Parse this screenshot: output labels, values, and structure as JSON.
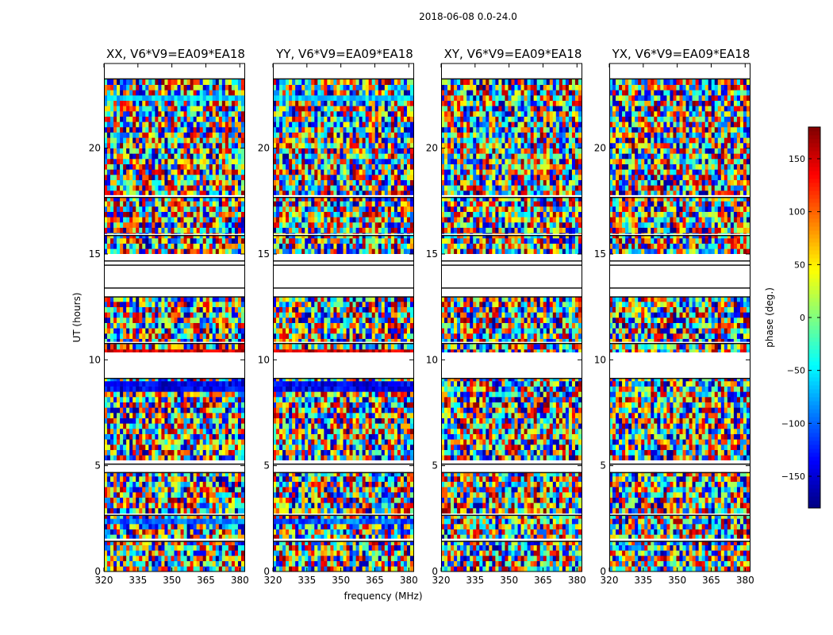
{
  "figure": {
    "suptitle": "2018-06-08 0.0-24.0"
  },
  "chart_data": {
    "type": "heatmap",
    "title": "2018-06-08 0.0-24.0",
    "xlabel": "frequency (MHz)",
    "ylabel": "UT (hours)",
    "x_range": [
      320,
      382
    ],
    "y_range": [
      0,
      24
    ],
    "x_ticks": [
      "320",
      "335",
      "350",
      "365",
      "380"
    ],
    "y_ticks": [
      "0",
      "5",
      "10",
      "15",
      "20"
    ],
    "colorbar": {
      "label": "phase (deg.)",
      "range": [
        -180,
        180
      ],
      "ticks": [
        "−150",
        "−100",
        "−50",
        "0",
        "50",
        "100",
        "150"
      ],
      "colormap": "jet"
    },
    "panels": [
      {
        "title": "XX, V6*V9=EA09*EA18",
        "pol": "XX"
      },
      {
        "title": "YY, V6*V9=EA09*EA18",
        "pol": "YY"
      },
      {
        "title": "XY, V6*V9=EA09*EA18",
        "pol": "XY"
      },
      {
        "title": "YX, V6*V9=EA09*EA18",
        "pol": "YX"
      }
    ],
    "flagged_ut_bands": [
      [
        0.0,
        0.02
      ],
      [
        1.45,
        1.55
      ],
      [
        2.68,
        2.74
      ],
      [
        4.7,
        4.9
      ],
      [
        5.1,
        5.25
      ],
      [
        9.15,
        10.35
      ],
      [
        10.8,
        10.85
      ],
      [
        13.0,
        13.4
      ],
      [
        13.42,
        14.45
      ],
      [
        14.5,
        14.65
      ],
      [
        14.7,
        15.0
      ],
      [
        15.9,
        15.95
      ],
      [
        17.7,
        17.78
      ],
      [
        23.3,
        24.0
      ]
    ],
    "coherent_features": [
      {
        "panels": [
          "XX",
          "YY"
        ],
        "ut": [
          10.35,
          10.6
        ],
        "phase_deg": 150
      },
      {
        "panels": [
          "XX",
          "YY"
        ],
        "ut": [
          8.6,
          8.9
        ],
        "phase_deg": -140
      },
      {
        "panels": [
          "XX",
          "YY"
        ],
        "ut": [
          2.25,
          2.45
        ],
        "phase_deg": -100
      },
      {
        "panels": [
          "XX",
          "YY"
        ],
        "ut": [
          5.4,
          5.6
        ],
        "phase_deg": 160
      },
      {
        "panels": [
          "XX",
          "YY"
        ],
        "ut": [
          22.3,
          22.6
        ],
        "phase_deg": -60
      }
    ]
  }
}
